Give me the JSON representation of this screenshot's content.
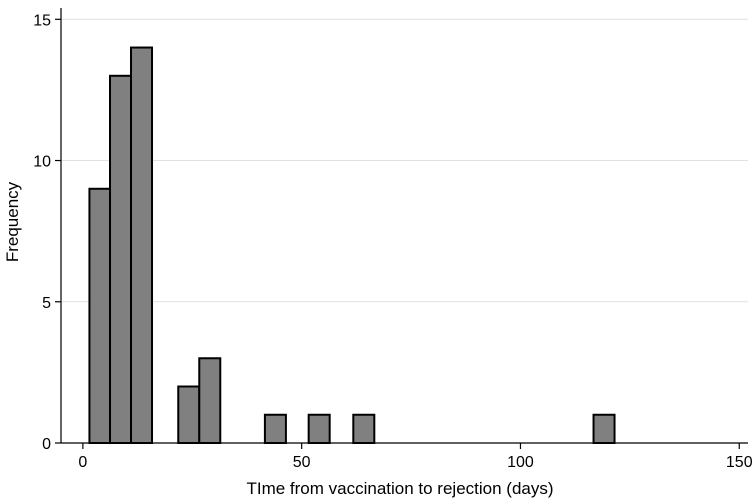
{
  "chart_data": {
    "type": "bar",
    "subtype": "histogram",
    "xlabel": "TIme from vaccination to rejection (days)",
    "ylabel": "Frequency",
    "xlim": [
      -5,
      152
    ],
    "ylim": [
      0,
      15.4
    ],
    "x_ticks": [
      0,
      50,
      100,
      150
    ],
    "y_ticks": [
      0,
      5,
      10,
      15
    ],
    "grid": true,
    "bar_color": "#808080",
    "bar_edge_color": "#000000",
    "grid_color": "#e1e1e1",
    "bins": [
      {
        "x0": 1.5,
        "x1": 6.2,
        "value": 9
      },
      {
        "x0": 6.2,
        "x1": 11.0,
        "value": 13
      },
      {
        "x0": 11.0,
        "x1": 15.8,
        "value": 14
      },
      {
        "x0": 21.8,
        "x1": 26.6,
        "value": 2
      },
      {
        "x0": 26.6,
        "x1": 31.4,
        "value": 3
      },
      {
        "x0": 41.6,
        "x1": 46.4,
        "value": 1
      },
      {
        "x0": 51.6,
        "x1": 56.4,
        "value": 1
      },
      {
        "x0": 61.8,
        "x1": 66.6,
        "value": 1
      },
      {
        "x0": 116.7,
        "x1": 121.5,
        "value": 1
      }
    ]
  }
}
